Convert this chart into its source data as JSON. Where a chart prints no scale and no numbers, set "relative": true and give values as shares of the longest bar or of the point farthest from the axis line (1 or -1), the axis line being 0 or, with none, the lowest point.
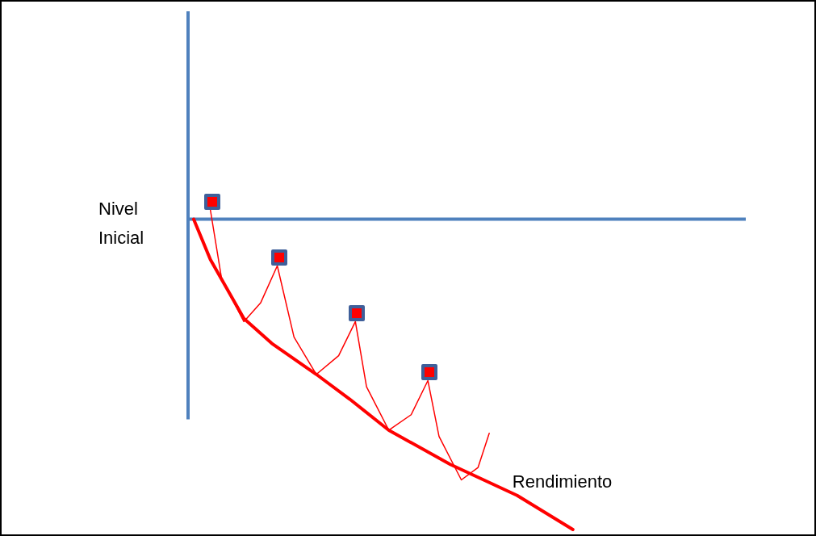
{
  "chart_data": {
    "type": "line",
    "relative": true,
    "tick_labels": false,
    "categories": [
      null,
      null,
      null,
      null,
      null,
      null,
      null,
      null,
      null,
      null,
      null,
      null,
      null,
      null,
      null,
      null,
      null,
      null,
      null,
      null,
      null,
      null,
      null,
      null,
      null,
      null,
      null,
      null,
      null,
      null,
      null,
      null,
      null,
      null,
      null,
      null,
      null,
      null,
      null,
      null,
      null,
      null,
      null,
      null,
      null,
      null,
      null,
      null,
      null,
      null,
      null,
      null,
      null,
      null,
      null,
      null,
      null,
      null,
      null,
      null,
      null,
      null,
      null,
      null,
      null,
      null,
      null,
      null,
      null,
      null,
      null,
      null,
      null,
      null,
      null,
      null,
      null,
      null,
      null,
      null,
      null,
      null,
      null,
      null,
      null,
      null,
      null,
      null,
      null,
      null,
      null,
      null,
      null,
      null,
      null,
      null,
      null,
      null,
      null,
      null,
      null
    ],
    "series": [
      {
        "name": "Rendimiento",
        "color": "#ff0000",
        "values": [
          null,
          0,
          null,
          null,
          -0.13,
          null,
          null,
          null,
          null,
          null,
          -0.32,
          null,
          null,
          null,
          null,
          -0.4,
          null,
          null,
          null,
          null,
          null,
          null,
          null,
          -0.5,
          null,
          null,
          null,
          null,
          null,
          -0.58,
          null,
          null,
          null,
          null,
          null,
          null,
          -0.68,
          null,
          null,
          null,
          null,
          null,
          null,
          null,
          null,
          null,
          null,
          -0.79,
          null,
          null,
          null,
          null,
          null,
          null,
          null,
          null,
          null,
          null,
          null,
          -0.89,
          null,
          null,
          null,
          null,
          null,
          null,
          null,
          null,
          null,
          -1,
          null,
          null,
          null,
          null,
          null,
          null,
          null,
          null,
          null,
          null,
          null,
          null,
          null,
          null,
          null,
          null,
          null,
          null,
          null,
          null,
          null,
          null,
          null,
          null,
          null,
          null,
          null,
          null,
          null,
          null,
          null
        ]
      },
      {
        "color": "#ff0000",
        "values": [
          null,
          null,
          null,
          null,
          0.03,
          null,
          -0.19,
          null,
          null,
          null,
          -0.33,
          null,
          null,
          -0.27,
          null,
          null,
          -0.15,
          null,
          null,
          -0.38,
          null,
          null,
          null,
          -0.5,
          null,
          null,
          null,
          -0.44,
          null,
          null,
          -0.33,
          null,
          -0.54,
          null,
          null,
          null,
          -0.68,
          null,
          null,
          null,
          -0.63,
          null,
          null,
          -0.52,
          null,
          -0.7,
          null,
          null,
          null,
          -0.84,
          null,
          null,
          -0.8,
          null,
          -0.69,
          null,
          null,
          null,
          null,
          null,
          null,
          null,
          null,
          null,
          null,
          null,
          null,
          null,
          null,
          null,
          null,
          null,
          null,
          null,
          null,
          null,
          null,
          null,
          null,
          null,
          null,
          null,
          null,
          null,
          null,
          null,
          null,
          null,
          null,
          null,
          null,
          null,
          null,
          null,
          null,
          null,
          null,
          null,
          null,
          null,
          null
        ]
      }
    ],
    "ref_lines": [
      {
        "axis": "y",
        "value": 0,
        "color": "#4f81bd"
      }
    ],
    "annotations": [
      "Nivel Inicial"
    ]
  }
}
